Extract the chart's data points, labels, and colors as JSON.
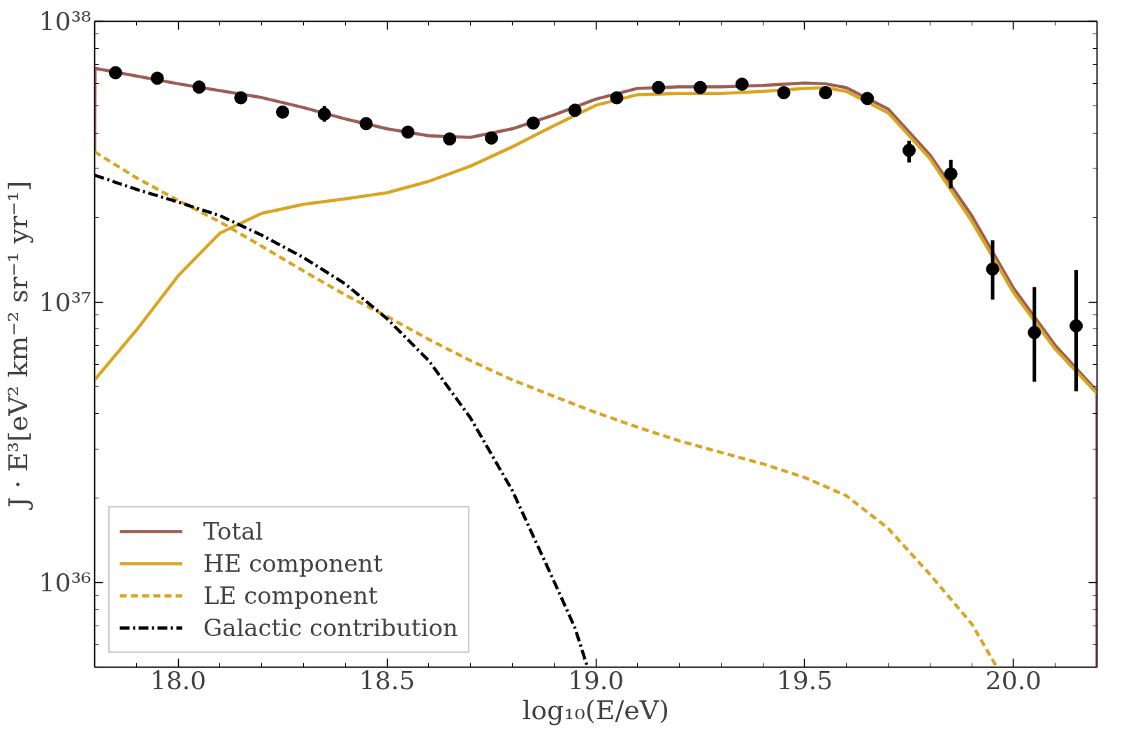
{
  "chart_data": {
    "type": "line",
    "xlabel": "log₁₀(E/eV)",
    "ylabel": "J · E³[eV² km⁻² sr⁻¹ yr⁻¹]",
    "log": "y",
    "grid": false,
    "legend": "bottom left",
    "line_style": "solid",
    "marker": "none",
    "xlim": [
      17.8,
      20.2
    ],
    "ylim": [
      5e+35,
      1e+38
    ],
    "xticks": [
      {
        "value": 18,
        "label": "18.0"
      },
      {
        "value": 18.5,
        "label": "18.5"
      },
      {
        "value": 19,
        "label": "19.0"
      },
      {
        "value": 19.5,
        "label": "19.5"
      },
      {
        "value": 20,
        "label": "20.0"
      }
    ],
    "yticks": [
      {
        "value": 1e+36,
        "label": "10³⁶"
      },
      {
        "value": 1e+37,
        "label": "10³⁷"
      },
      {
        "value": 1e+38,
        "label": "10³⁸"
      }
    ],
    "series": [
      {
        "name": "Total",
        "color": "#9c5f55",
        "x": [
          17.8,
          17.801,
          18.0,
          18.2,
          18.3,
          18.4,
          18.5,
          18.6,
          18.7,
          18.8,
          18.9,
          19.0,
          19.1,
          19.2,
          19.3,
          19.4,
          19.5,
          19.55,
          19.6,
          19.7,
          19.8,
          19.9,
          20.0,
          20.1,
          20.2,
          20.2
        ],
        "values": [
          3.4e+37,
          6.8e+37,
          5.99e+37,
          5.35e+37,
          4.93e+37,
          4.49e+37,
          4.14e+37,
          3.91e+37,
          3.86e+37,
          4.14e+37,
          4.64e+37,
          5.28e+37,
          5.77e+37,
          5.84e+37,
          5.84e+37,
          5.91e+37,
          6.03e+37,
          5.99e+37,
          5.8e+37,
          4.87e+37,
          3.34e+37,
          2.03e+37,
          1.12e+37,
          7e+36,
          4.81e+36,
          5e+35
        ]
      },
      {
        "name": "HE component",
        "color": "#daa520",
        "x": [
          17.8,
          17.9,
          18.0,
          18.1,
          18.2,
          18.3,
          18.4,
          18.5,
          18.6,
          18.7,
          18.8,
          18.9,
          19.0,
          19.1,
          19.2,
          19.3,
          19.4,
          19.5,
          19.55,
          19.6,
          19.7,
          19.8,
          19.9,
          20.0,
          20.1,
          20.2
        ],
        "values": [
          5.28e+36,
          7.94e+36,
          1.24e+37,
          1.76e+37,
          2.07e+37,
          2.23e+37,
          2.33e+37,
          2.45e+37,
          2.69e+37,
          3.05e+37,
          3.57e+37,
          4.25e+37,
          5.02e+37,
          5.48e+37,
          5.53e+37,
          5.53e+37,
          5.63e+37,
          5.77e+37,
          5.8e+37,
          5.63e+37,
          4.72e+37,
          3.24e+37,
          1.94e+37,
          1.08e+37,
          6.79e+36,
          4.72e+36
        ]
      },
      {
        "name": "LE component",
        "color": "#daa520",
        "line_style": "dashed",
        "x": [
          17.8,
          17.9,
          18.0,
          18.1,
          18.2,
          18.3,
          18.4,
          18.5,
          18.6,
          18.7,
          18.8,
          18.9,
          19.0,
          19.1,
          19.2,
          19.3,
          19.4,
          19.5,
          19.6,
          19.7,
          19.8,
          19.9,
          19.96
        ],
        "values": [
          3.43e+37,
          2.77e+37,
          2.3e+37,
          1.93e+37,
          1.58e+37,
          1.29e+37,
          1.06e+37,
          8.88e+36,
          7.36e+36,
          6.18e+36,
          5.28e+36,
          4.61e+36,
          4.04e+36,
          3.58e+36,
          3.2e+36,
          2.91e+36,
          2.65e+36,
          2.37e+36,
          2.04e+36,
          1.56e+36,
          1.07e+36,
          7.13e+35,
          5e+35
        ]
      },
      {
        "name": "Galactic contribution",
        "color": "#000000",
        "line_style": "dashdot",
        "x": [
          17.8,
          17.9,
          18.0,
          18.1,
          18.2,
          18.3,
          18.4,
          18.5,
          18.6,
          18.7,
          18.8,
          18.9,
          18.95,
          18.98
        ],
        "values": [
          2.83e+37,
          2.52e+37,
          2.27e+37,
          2.03e+37,
          1.73e+37,
          1.44e+37,
          1.16e+37,
          8.72e+36,
          6.18e+36,
          3.86e+36,
          2.13e+36,
          1.01e+36,
          6.9e+35,
          5e+35
        ]
      },
      {
        "type": "scatter",
        "marker": "circle",
        "color": "#000000",
        "x": [
          17.85,
          17.95,
          18.05,
          18.15,
          18.25,
          18.35,
          18.45,
          18.55,
          18.65,
          18.75,
          18.85,
          18.95,
          19.05,
          19.15,
          19.25,
          19.35,
          19.45,
          19.55,
          19.65,
          19.75,
          19.85,
          19.95,
          20.05,
          20.15
        ],
        "values": [
          6.56e+37,
          6.27e+37,
          5.83e+37,
          5.34e+37,
          4.75e+37,
          4.67e+37,
          4.32e+37,
          4.03e+37,
          3.81e+37,
          3.84e+37,
          4.34e+37,
          4.82e+37,
          5.34e+37,
          5.81e+37,
          5.81e+37,
          5.97e+37,
          5.57e+37,
          5.57e+37,
          5.31e+37,
          3.47e+37,
          2.86e+37,
          1.31e+37,
          7.78e+36,
          8.22e+36
        ],
        "errors": [
          null,
          null,
          null,
          null,
          null,
          [
            4.39e+37,
            4.99e+37
          ],
          null,
          null,
          null,
          null,
          null,
          null,
          null,
          null,
          null,
          null,
          null,
          null,
          null,
          [
            3.14e+37,
            3.75e+37
          ],
          [
            2.54e+37,
            3.21e+37
          ],
          [
            1.02e+37,
            1.66e+37
          ],
          [
            5.2e+36,
            1.13e+37
          ],
          [
            4.81e+36,
            1.3e+37
          ]
        ]
      }
    ]
  }
}
